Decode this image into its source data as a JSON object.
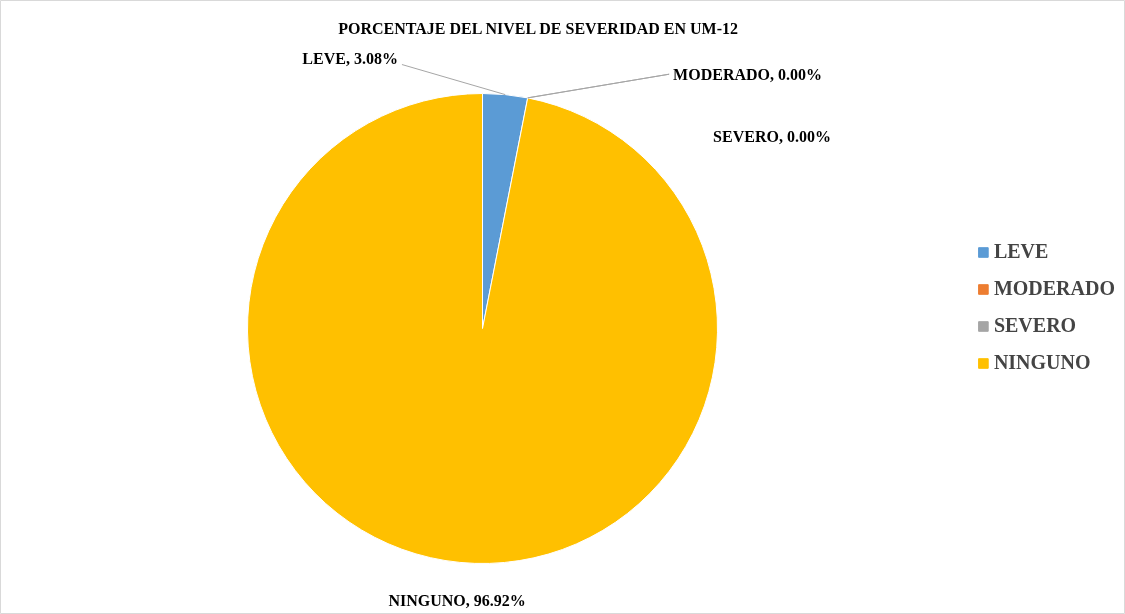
{
  "chart_data": {
    "type": "pie",
    "title": "PORCENTAJE  DEL NIVEL DE SEVERIDAD  EN UM-12",
    "categories": [
      "LEVE",
      "MODERADO",
      "SEVERO",
      "NINGUNO"
    ],
    "values": [
      3.08,
      0,
      0,
      96.92
    ],
    "value_labels": [
      "LEVE, 3.08%",
      "MODERADO, 0.00%",
      "SEVERO, 0.00%",
      "NINGUNO, 96.92%"
    ],
    "colors": [
      "#5b9bd5",
      "#ed7d31",
      "#a5a5a5",
      "#ffc000"
    ],
    "legend": "right"
  }
}
